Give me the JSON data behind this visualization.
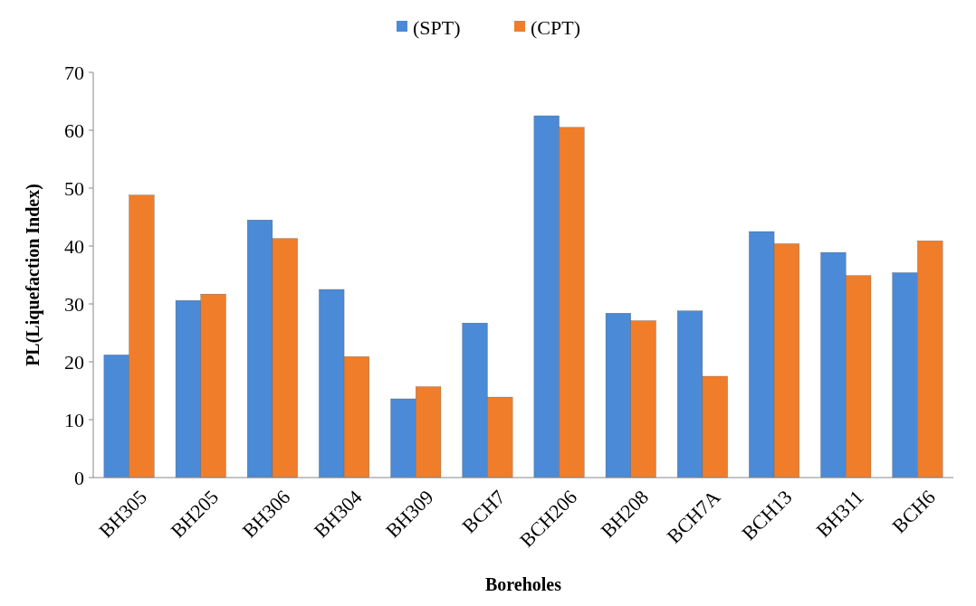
{
  "chart_data": {
    "type": "bar",
    "xlabel": "Boreholes",
    "ylabel": "PL(Liquefaction Index)",
    "categories": [
      "BH305",
      "BH205",
      "BH306",
      "BH304",
      "BH309",
      "BCH7",
      "BCH206",
      "BH208",
      "BCH7A",
      "BCH13",
      "BH311",
      "BCH6"
    ],
    "series": [
      {
        "name": "(SPT)",
        "color": "#4a8ad6",
        "values": [
          21.2,
          30.6,
          44.5,
          32.5,
          13.6,
          26.7,
          62.5,
          28.4,
          28.8,
          42.5,
          38.9,
          35.4
        ]
      },
      {
        "name": "(CPT)",
        "color": "#f07d2a",
        "values": [
          48.8,
          31.7,
          41.3,
          20.9,
          15.7,
          13.9,
          60.5,
          27.1,
          17.5,
          40.4,
          34.9,
          40.9
        ]
      }
    ],
    "ylim": [
      0,
      70
    ],
    "yticks": [
      0,
      10,
      20,
      30,
      40,
      50,
      60,
      70
    ],
    "grid": false,
    "legend": "top"
  }
}
